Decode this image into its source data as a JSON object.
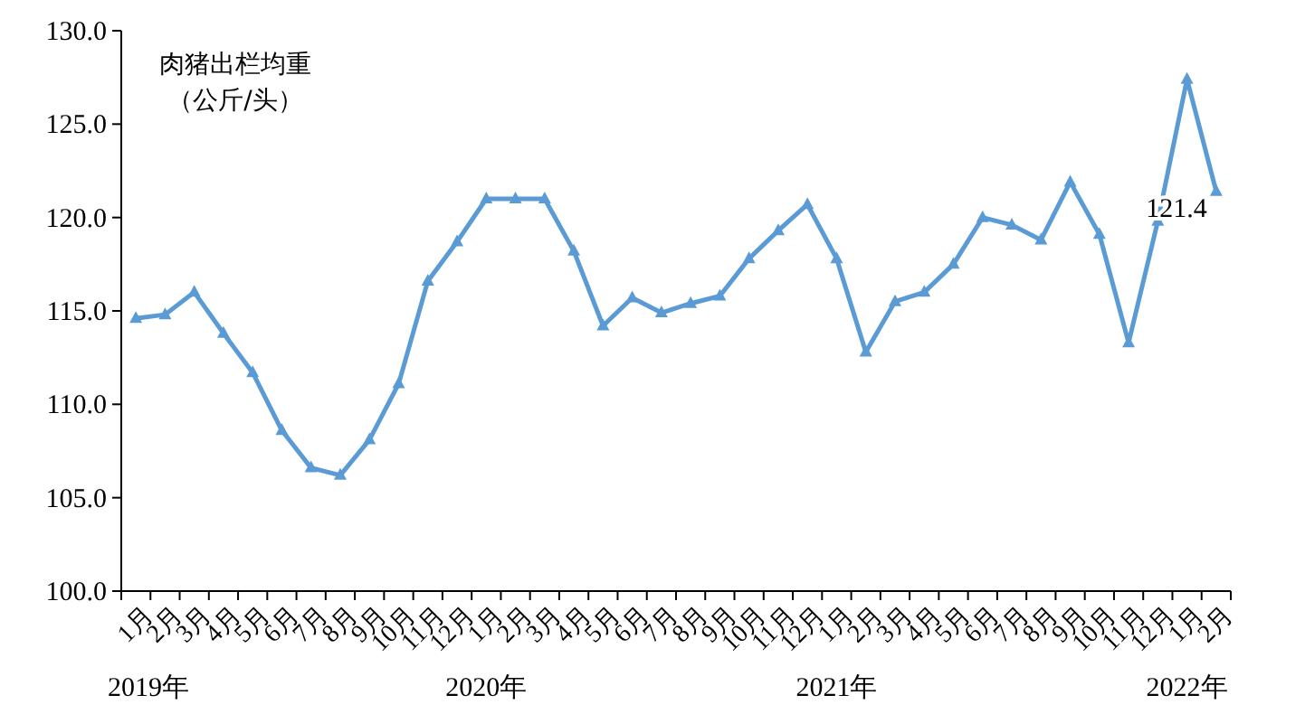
{
  "chart_data": {
    "type": "line",
    "title": "肉猪出栏均重",
    "subtitle": "（公斤/头）",
    "categories": [
      "1月",
      "2月",
      "3月",
      "4月",
      "5月",
      "6月",
      "7月",
      "8月",
      "9月",
      "10月",
      "11月",
      "12月",
      "1月",
      "2月",
      "3月",
      "4月",
      "5月",
      "6月",
      "7月",
      "8月",
      "9月",
      "10月",
      "11月",
      "12月",
      "1月",
      "2月",
      "3月",
      "4月",
      "5月",
      "6月",
      "7月",
      "8月",
      "9月",
      "10月",
      "11月",
      "12月",
      "1月",
      "2月"
    ],
    "series": [
      {
        "color": "#5b9bd5",
        "values": [
          114.6,
          114.8,
          116.0,
          113.8,
          111.7,
          108.6,
          106.6,
          106.2,
          108.1,
          111.1,
          116.6,
          118.7,
          121.0,
          121.0,
          121.0,
          118.2,
          114.2,
          115.7,
          114.9,
          115.4,
          115.8,
          117.8,
          119.3,
          120.7,
          117.8,
          112.8,
          115.5,
          116.0,
          117.5,
          120.0,
          119.6,
          118.8,
          121.9,
          119.1,
          113.3,
          119.8,
          127.4,
          121.4
        ],
        "value_labels": [
          null,
          null,
          null,
          null,
          null,
          null,
          null,
          null,
          null,
          null,
          null,
          null,
          null,
          null,
          null,
          null,
          null,
          null,
          null,
          null,
          null,
          null,
          null,
          null,
          null,
          null,
          null,
          null,
          null,
          null,
          null,
          null,
          null,
          null,
          null,
          null,
          null,
          "121.4"
        ]
      }
    ],
    "annotations": [
      "2019年",
      "2020年",
      "2021年",
      "2022年"
    ],
    "ylim": [
      100,
      130
    ],
    "yticks": [
      {
        "value": 100,
        "label": "100.0"
      },
      {
        "value": 105,
        "label": "105.0"
      },
      {
        "value": 110,
        "label": "110.0"
      },
      {
        "value": 115,
        "label": "115.0"
      },
      {
        "value": 120,
        "label": "120.0"
      },
      {
        "value": 125,
        "label": "125.0"
      },
      {
        "value": 130,
        "label": "130.0"
      }
    ],
    "marker": "triangle",
    "line_style": "solid",
    "grid": false
  }
}
